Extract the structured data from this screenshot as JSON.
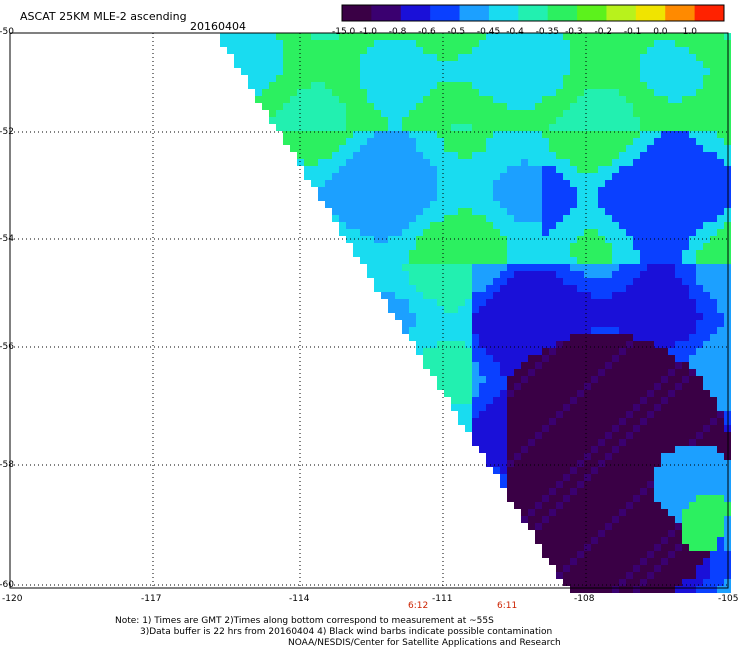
{
  "header": {
    "title": "ASCAT 25KM MLE-2 ascending",
    "date": "20160404"
  },
  "colorbar": {
    "labels": [
      "-15.0",
      "-1.0",
      "-0.8",
      "-0.6",
      "-0.5",
      "-0.45",
      "-0.4",
      "-0.35",
      "-0.3",
      "-0.2",
      "-0.1",
      "0.0",
      "1.0"
    ],
    "colors": [
      "#3a0045",
      "#3a0070",
      "#1a10d8",
      "#0a40ff",
      "#1ca0ff",
      "#19dcf0",
      "#22f0b0",
      "#2cf060",
      "#5cf21c",
      "#b8f21c",
      "#f0e400",
      "#ff8a00",
      "#ff2200"
    ]
  },
  "map": {
    "lat_labels": [
      "-50",
      "-52",
      "-54",
      "-56",
      "-58",
      "-60"
    ],
    "lon_labels": [
      "-120",
      "-117",
      "-114",
      "-111",
      "-108",
      "-105"
    ],
    "time_labels": [
      "6:12",
      "6:11"
    ],
    "time_color": "#cc2200"
  },
  "footer": {
    "line1": "Note: 1) Times are GMT 2)Times along bottom correspond to measurement at ~55S",
    "line2": "3)Data buffer is 22 hrs from 20160404 4) Black wind barbs indicate possible contamination",
    "line3": "NOAA/NESDIS/Center for Satellite Applications and Research"
  }
}
